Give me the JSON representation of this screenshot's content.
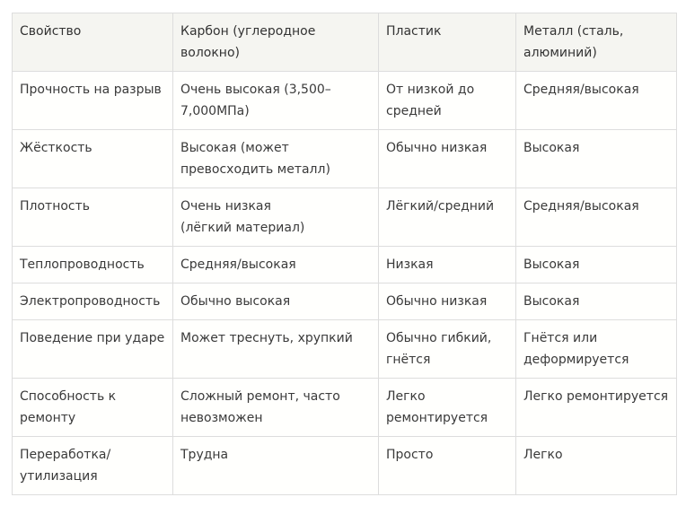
{
  "table": {
    "headers": [
      "Свойство",
      "Карбон (углеродное волокно)",
      "Пластик",
      "Металл (сталь,\nалюминий)"
    ],
    "rows": [
      [
        "Прочность на разрыв",
        "Очень высокая (3,500–\n7,000МПа)",
        "От низкой до\nсредней",
        "Средняя/высокая"
      ],
      [
        "Жёсткость",
        "Высокая (может\nпревосходить металл)",
        "Обычно низкая",
        "Высокая"
      ],
      [
        "Плотность",
        "Очень низкая\n(лёгкий материал)",
        "Лёгкий/средний",
        "Средняя/высокая"
      ],
      [
        "Теплопроводность",
        "Средняя/высокая",
        "Низкая",
        "Высокая"
      ],
      [
        "Электропроводность",
        "Обычно высокая",
        "Обычно низкая",
        "Высокая"
      ],
      [
        "Поведение при ударе",
        "Может треснуть, хрупкий",
        "Обычно гибкий,\nгнётся",
        "Гнётся или\nдеформируется"
      ],
      [
        "Способность к ремонту",
        "Сложный ремонт, часто\nневозможен",
        "Легко\nремонтируется",
        "Легко ремонтируется"
      ],
      [
        "Переработка/\nутилизация",
        "Трудна",
        "Просто",
        "Легко"
      ]
    ]
  }
}
